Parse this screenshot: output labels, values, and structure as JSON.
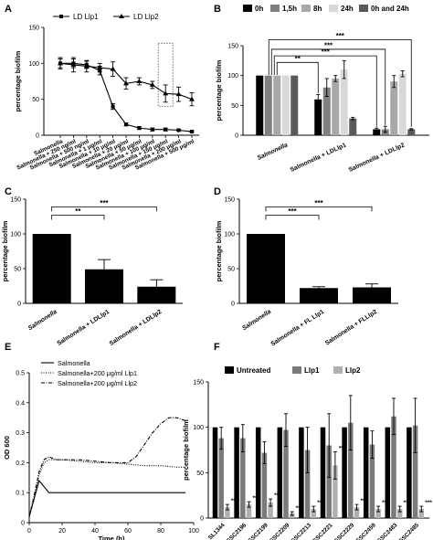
{
  "figure": {
    "title": ""
  },
  "chart_data": [
    {
      "id": "A",
      "panel_letter": "A",
      "type": "line",
      "ylabel": "percentage biofilm",
      "ylim": [
        0,
        150
      ],
      "yticks": [
        0,
        50,
        100,
        150
      ],
      "categories": [
        "Salmonella",
        "Salmonella + 250 ng/ml",
        "Salmonella + 500 ng/ml",
        "Salmonella + 1 μg/ml",
        "Salmonella + 10 μg/ml",
        "Salmonella + 20 μg/ml",
        "Salmonella + 50 μg/ml",
        "Salmonella + 100 μg/ml",
        "Salmonella + 150 μg/ml",
        "Salmonella + 200 μg/ml",
        "Salmonella + 500 μg/ml"
      ],
      "series": [
        {
          "name": "LD Llp1",
          "marker": "square",
          "values": [
            100,
            100,
            98,
            90,
            40,
            15,
            10,
            8,
            8,
            7,
            5
          ],
          "errors": [
            6,
            6,
            5,
            6,
            4,
            2,
            2,
            2,
            2,
            1,
            1
          ]
        },
        {
          "name": "LD Llp2",
          "marker": "triangle",
          "values": [
            100,
            98,
            96,
            94,
            92,
            72,
            75,
            70,
            58,
            57,
            50
          ],
          "errors": [
            8,
            10,
            8,
            6,
            10,
            8,
            5,
            5,
            12,
            10,
            9
          ]
        }
      ],
      "annotations": [
        "dotted box around Salmonella + 150 μg/ml"
      ]
    },
    {
      "id": "B",
      "panel_letter": "B",
      "type": "bar",
      "ylabel": "percentage biofilm",
      "ylim": [
        0,
        150
      ],
      "yticks": [
        0,
        50,
        100,
        150
      ],
      "groups": [
        "Salmonella",
        "Salmonella + LDLlp1",
        "Salmonella + LDLlp2"
      ],
      "series": [
        {
          "name": "0h",
          "color": "#000000",
          "values": [
            100,
            60,
            10
          ],
          "errors": [
            0,
            8,
            2
          ]
        },
        {
          "name": "1,5h",
          "color": "#808080",
          "values": [
            100,
            80,
            10
          ],
          "errors": [
            0,
            15,
            5
          ]
        },
        {
          "name": "8h",
          "color": "#a8a8a8",
          "values": [
            100,
            95,
            90
          ],
          "errors": [
            0,
            5,
            10
          ]
        },
        {
          "name": "24h",
          "color": "#d8d8d8",
          "values": [
            100,
            110,
            103
          ],
          "errors": [
            0,
            15,
            5
          ]
        },
        {
          "name": "0h and 24h",
          "color": "#5a5a5a",
          "values": [
            100,
            28,
            10
          ],
          "errors": [
            0,
            2,
            1
          ]
        }
      ],
      "significance": [
        "**",
        "***",
        "***",
        "***"
      ]
    },
    {
      "id": "C",
      "panel_letter": "C",
      "type": "bar",
      "ylabel": "percentage biofilm",
      "ylim": [
        0,
        150
      ],
      "yticks": [
        0,
        50,
        100,
        150
      ],
      "categories": [
        "Salmonella",
        "Salmonella + LDLlp1",
        "Salmonella + LDLlp2"
      ],
      "values": [
        100,
        49,
        24
      ],
      "errors": [
        0,
        14,
        10
      ],
      "significance": [
        {
          "from": "Salmonella",
          "to": "Salmonella + LDLlp1",
          "label": "**"
        },
        {
          "from": "Salmonella",
          "to": "Salmonella + LDLlp2",
          "label": "***"
        }
      ]
    },
    {
      "id": "D",
      "panel_letter": "D",
      "type": "bar",
      "ylabel": "percentage biofilm",
      "ylim": [
        0,
        150
      ],
      "yticks": [
        0,
        50,
        100,
        150
      ],
      "categories": [
        "Salmonella",
        "Salmonella + FL Llp1",
        "Salmonella + FLLlp2"
      ],
      "values": [
        100,
        22,
        23
      ],
      "errors": [
        0,
        2,
        5
      ],
      "significance": [
        {
          "from": "Salmonella",
          "to": "Salmonella + FL Llp1",
          "label": "***"
        },
        {
          "from": "Salmonella",
          "to": "Salmonella + FLLlp2",
          "label": "***"
        }
      ]
    },
    {
      "id": "E",
      "panel_letter": "E",
      "type": "line",
      "xlabel": "Time (h)",
      "ylabel": "OD 600",
      "xlim": [
        0,
        100
      ],
      "ylim": [
        0,
        0.5
      ],
      "xticks": [
        0,
        20,
        40,
        60,
        80,
        100
      ],
      "yticks": [
        0,
        0.1,
        0.2,
        0.3,
        0.4,
        0.5
      ],
      "series": [
        {
          "name": "Salmonella",
          "style": "solid",
          "x": [
            0,
            3,
            6,
            9,
            12,
            16,
            20,
            30,
            40,
            50,
            60,
            70,
            80,
            90,
            95
          ],
          "y": [
            0.02,
            0.08,
            0.14,
            0.12,
            0.1,
            0.1,
            0.1,
            0.1,
            0.1,
            0.1,
            0.1,
            0.1,
            0.1,
            0.1,
            0.1
          ]
        },
        {
          "name": "Salmonella+200 μg/ml Llp1",
          "style": "dotted",
          "x": [
            0,
            3,
            6,
            9,
            12,
            16,
            20,
            30,
            40,
            50,
            60,
            70,
            80,
            90,
            95
          ],
          "y": [
            0.02,
            0.08,
            0.16,
            0.2,
            0.21,
            0.21,
            0.21,
            0.205,
            0.2,
            0.2,
            0.195,
            0.19,
            0.19,
            0.185,
            0.185
          ]
        },
        {
          "name": "Salmonella+200 μg/ml Llp2",
          "style": "dashdot",
          "x": [
            0,
            3,
            6,
            9,
            12,
            16,
            20,
            30,
            40,
            50,
            60,
            65,
            70,
            75,
            80,
            85,
            90,
            95
          ],
          "y": [
            0.02,
            0.09,
            0.17,
            0.21,
            0.22,
            0.21,
            0.21,
            0.21,
            0.205,
            0.2,
            0.2,
            0.22,
            0.26,
            0.3,
            0.33,
            0.35,
            0.35,
            0.34
          ]
        }
      ]
    },
    {
      "id": "F",
      "panel_letter": "F",
      "type": "bar",
      "ylabel": "percentage biofilm",
      "ylim": [
        0,
        150
      ],
      "yticks": [
        0,
        50,
        100,
        150
      ],
      "groups": [
        "SL1344",
        "SGSC2196",
        "SGSC2199",
        "SGSC2209",
        "SGSC2213",
        "SGSC2221",
        "SGSC2229",
        "SGSC2459",
        "SGSC2483",
        "SGSC2485"
      ],
      "series": [
        {
          "name": "Untreated",
          "color": "#000000",
          "values": [
            100,
            100,
            100,
            100,
            100,
            100,
            100,
            100,
            100,
            100
          ],
          "errors": [
            0,
            0,
            0,
            0,
            0,
            0,
            0,
            0,
            0,
            0
          ]
        },
        {
          "name": "Llp1",
          "color": "#7a7a7a",
          "values": [
            88,
            88,
            72,
            97,
            75,
            80,
            105,
            81,
            112,
            102
          ],
          "errors": [
            12,
            15,
            12,
            18,
            25,
            35,
            30,
            15,
            20,
            30
          ]
        },
        {
          "name": "Llp2",
          "color": "#b0b0b0",
          "values": [
            12,
            15,
            17,
            5,
            10,
            58,
            12,
            10,
            10,
            10
          ],
          "errors": [
            3,
            3,
            4,
            2,
            3,
            15,
            3,
            3,
            3,
            3
          ]
        }
      ],
      "significance": [
        "***",
        "***",
        "***",
        "***",
        "***",
        "***",
        "***",
        "***",
        "***",
        "***"
      ]
    }
  ]
}
